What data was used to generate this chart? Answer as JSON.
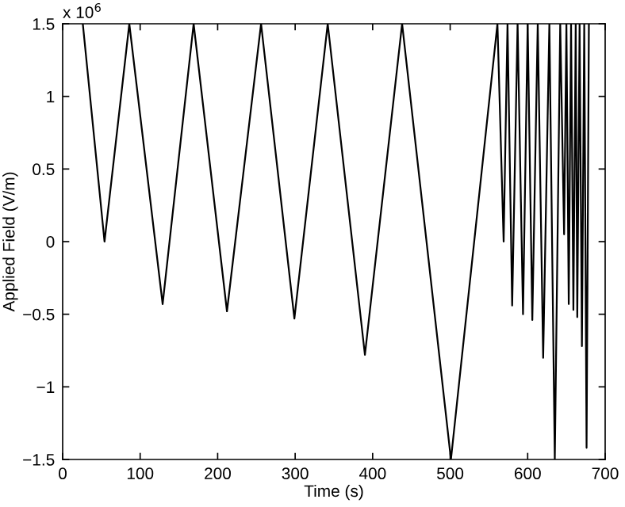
{
  "chart_data": {
    "type": "line",
    "xlabel": "Time (s)",
    "ylabel": "Applied Field (V/m)",
    "annotations": [
      "x 10$^{6}$"
    ],
    "x": [
      26,
      54,
      86,
      129,
      169,
      212,
      256,
      299,
      342,
      390,
      438,
      501,
      561,
      569,
      574,
      580,
      587,
      594,
      600,
      606,
      613,
      620,
      628,
      635,
      642,
      647,
      650,
      653,
      656,
      659,
      662,
      664,
      667,
      670,
      673,
      676,
      679
    ],
    "series": [
      {
        "color": "#000000",
        "values": [
          1.5,
          0.0,
          1.5,
          -0.43,
          1.5,
          -0.48,
          1.5,
          -0.53,
          1.5,
          -0.78,
          1.5,
          -1.5,
          1.5,
          0.0,
          1.5,
          -0.44,
          1.5,
          -0.5,
          1.5,
          -0.54,
          1.5,
          -0.8,
          1.5,
          -1.5,
          1.5,
          0.05,
          1.5,
          -0.43,
          1.5,
          -0.47,
          1.5,
          -0.52,
          1.5,
          -0.72,
          1.5,
          -1.42,
          1.5
        ]
      }
    ],
    "xlim": [
      0,
      700
    ],
    "xticks": [
      0,
      100,
      200,
      300,
      400,
      500,
      600,
      700
    ],
    "ylim": [
      -1.5,
      1.5
    ],
    "yticks": [
      {
        "value": -1.5,
        "label": "−1.5"
      },
      {
        "value": -1,
        "label": "−1"
      },
      {
        "value": -0.5,
        "label": "−0.5"
      },
      0,
      0.5,
      1,
      1.5
    ],
    "grid": false,
    "legend": false,
    "marker": "none",
    "line_style": "solid"
  }
}
